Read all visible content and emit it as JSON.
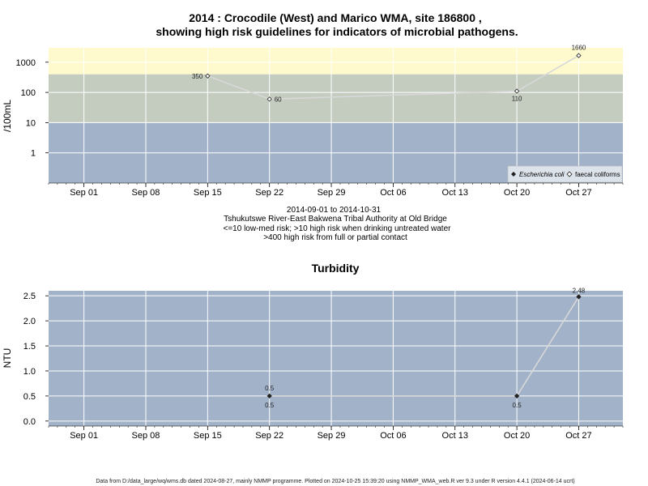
{
  "colors": {
    "panel_bg": "#a2b2c8",
    "band_high": "#fffacd",
    "band_medium": "#c4ccc0",
    "grid": "#ffffff",
    "line": "#d8d8d8",
    "point_dark": "#222222"
  },
  "chart_data": [
    {
      "type": "line",
      "title_line1": "2014 : Crocodile (West) and Marico WMA, site 186800 ,",
      "title_line2": "showing high risk guidelines for indicators of microbial pathogens.",
      "ylabel": "/100mL",
      "yscale": "log",
      "ylim": [
        0.1,
        3000
      ],
      "yticks": [
        {
          "v": 1,
          "label": "1"
        },
        {
          "v": 10,
          "label": "10"
        },
        {
          "v": 100,
          "label": "100"
        },
        {
          "v": 1000,
          "label": "1000"
        }
      ],
      "xlim": [
        "2014-08-28",
        "2014-11-01"
      ],
      "xticks": [
        {
          "d": "2014-09-01",
          "label": "Sep 01"
        },
        {
          "d": "2014-09-08",
          "label": "Sep 08"
        },
        {
          "d": "2014-09-15",
          "label": "Sep 15"
        },
        {
          "d": "2014-09-22",
          "label": "Sep 22"
        },
        {
          "d": "2014-09-29",
          "label": "Sep 29"
        },
        {
          "d": "2014-10-06",
          "label": "Oct 06"
        },
        {
          "d": "2014-10-13",
          "label": "Oct 13"
        },
        {
          "d": "2014-10-20",
          "label": "Oct 20"
        },
        {
          "d": "2014-10-27",
          "label": "Oct 27"
        }
      ],
      "bands": [
        {
          "from": 0.1,
          "to": 10,
          "color": "#a2b2c8"
        },
        {
          "from": 10,
          "to": 400,
          "color": "#c4ccc0"
        },
        {
          "from": 400,
          "to": 3000,
          "color": "#fffacd"
        }
      ],
      "grid": true,
      "legend_position": "bottom-right",
      "series": [
        {
          "name": "Escherichia coli",
          "marker": "filled-diamond",
          "points": []
        },
        {
          "name": "faecal coliforms",
          "marker": "open-diamond",
          "points": [
            {
              "date": "2014-09-15",
              "value": 350,
              "label": "350",
              "label_pos": "left"
            },
            {
              "date": "2014-09-22",
              "value": 60,
              "label": "60",
              "label_pos": "right"
            },
            {
              "date": "2014-10-20",
              "value": 110,
              "label": "110",
              "label_pos": "below"
            },
            {
              "date": "2014-10-27",
              "value": 1660,
              "label": "1660",
              "label_pos": "above"
            }
          ]
        }
      ],
      "notes": [
        "2014-09-01 to 2014-10-31",
        "Tshukutswe River-East Bakwena Tribal Authority at Old Bridge",
        "<=10 low-med risk; >10 high risk when drinking untreated water",
        ">400 high risk from full or partial contact"
      ]
    },
    {
      "type": "line",
      "title": "Turbidity",
      "ylabel": "NTU",
      "ylim": [
        -0.1,
        2.6
      ],
      "yticks": [
        {
          "v": 0,
          "label": "0.0"
        },
        {
          "v": 0.5,
          "label": "0.5"
        },
        {
          "v": 1,
          "label": "1.0"
        },
        {
          "v": 1.5,
          "label": "1.5"
        },
        {
          "v": 2,
          "label": "2.0"
        },
        {
          "v": 2.5,
          "label": "2.5"
        }
      ],
      "xlim": [
        "2014-08-28",
        "2014-11-01"
      ],
      "xticks": [
        {
          "d": "2014-09-01",
          "label": "Sep 01"
        },
        {
          "d": "2014-09-08",
          "label": "Sep 08"
        },
        {
          "d": "2014-09-15",
          "label": "Sep 15"
        },
        {
          "d": "2014-09-22",
          "label": "Sep 22"
        },
        {
          "d": "2014-09-29",
          "label": "Sep 29"
        },
        {
          "d": "2014-10-06",
          "label": "Oct 06"
        },
        {
          "d": "2014-10-13",
          "label": "Oct 13"
        },
        {
          "d": "2014-10-20",
          "label": "Oct 20"
        },
        {
          "d": "2014-10-27",
          "label": "Oct 27"
        }
      ],
      "grid": true,
      "series": [
        {
          "name": "",
          "marker": "filled-diamond",
          "points": [
            {
              "date": "2014-09-22",
              "value": 0.5,
              "labels": [
                "0.5",
                "0.5"
              ]
            },
            {
              "date": "2014-10-20",
              "value": 0.5,
              "labels": [
                "0.5"
              ]
            },
            {
              "date": "2014-10-27",
              "value": 2.48,
              "labels": [
                "2.48"
              ]
            }
          ]
        }
      ]
    }
  ],
  "footer": "Data from D:/data_large/wq/wms.db dated 2024-08-27, mainly NMMP programme. Plotted on 2024-10-25 15:39:20 using NMMP_WMA_web.R ver 9.3 under R version 4.4.1 (2024-06-14 ucrt)"
}
